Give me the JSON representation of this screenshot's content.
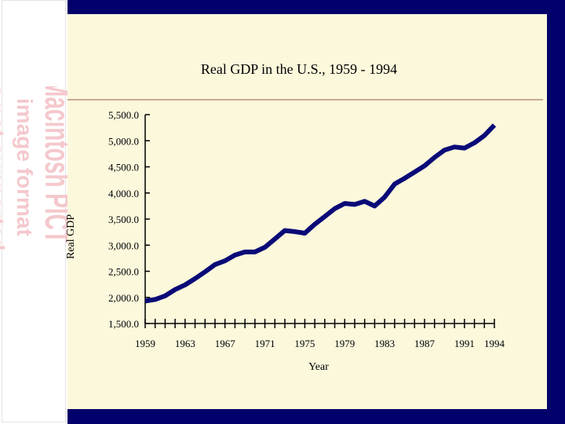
{
  "chart_data": {
    "type": "line",
    "title": "Real GDP in the U.S., 1959 - 1994",
    "xlabel": "Year",
    "ylabel": "Real GDP",
    "ylim": [
      1500,
      5500
    ],
    "xlim": [
      1959,
      1994
    ],
    "y_ticks": [
      "1,500.0",
      "2,000.0",
      "2,500.0",
      "3,000.0",
      "3,500.0",
      "4,000.0",
      "4,500.0",
      "5,000.0",
      "5,500.0"
    ],
    "x_tick_labels": [
      "1959",
      "1963",
      "1967",
      "1971",
      "1975",
      "1979",
      "1983",
      "1987",
      "1991",
      "1994"
    ],
    "grid": false,
    "series": [
      {
        "color": "#0a0a78",
        "x": [
          1959,
          1960,
          1961,
          1962,
          1963,
          1964,
          1965,
          1966,
          1967,
          1968,
          1969,
          1970,
          1971,
          1972,
          1973,
          1974,
          1975,
          1976,
          1977,
          1978,
          1979,
          1980,
          1981,
          1982,
          1983,
          1984,
          1985,
          1986,
          1987,
          1988,
          1989,
          1990,
          1991,
          1992,
          1993,
          1994
        ],
        "y": [
          1930,
          1960,
          2030,
          2150,
          2240,
          2360,
          2490,
          2630,
          2700,
          2810,
          2870,
          2870,
          2960,
          3120,
          3280,
          3260,
          3230,
          3400,
          3550,
          3700,
          3800,
          3780,
          3840,
          3750,
          3920,
          4170,
          4280,
          4400,
          4520,
          4680,
          4820,
          4880,
          4860,
          4960,
          5100,
          5300
        ]
      }
    ]
  },
  "sidebar": {
    "placeholder_lines": [
      "Macintosh PICT",
      "image format",
      "is not supported"
    ]
  }
}
